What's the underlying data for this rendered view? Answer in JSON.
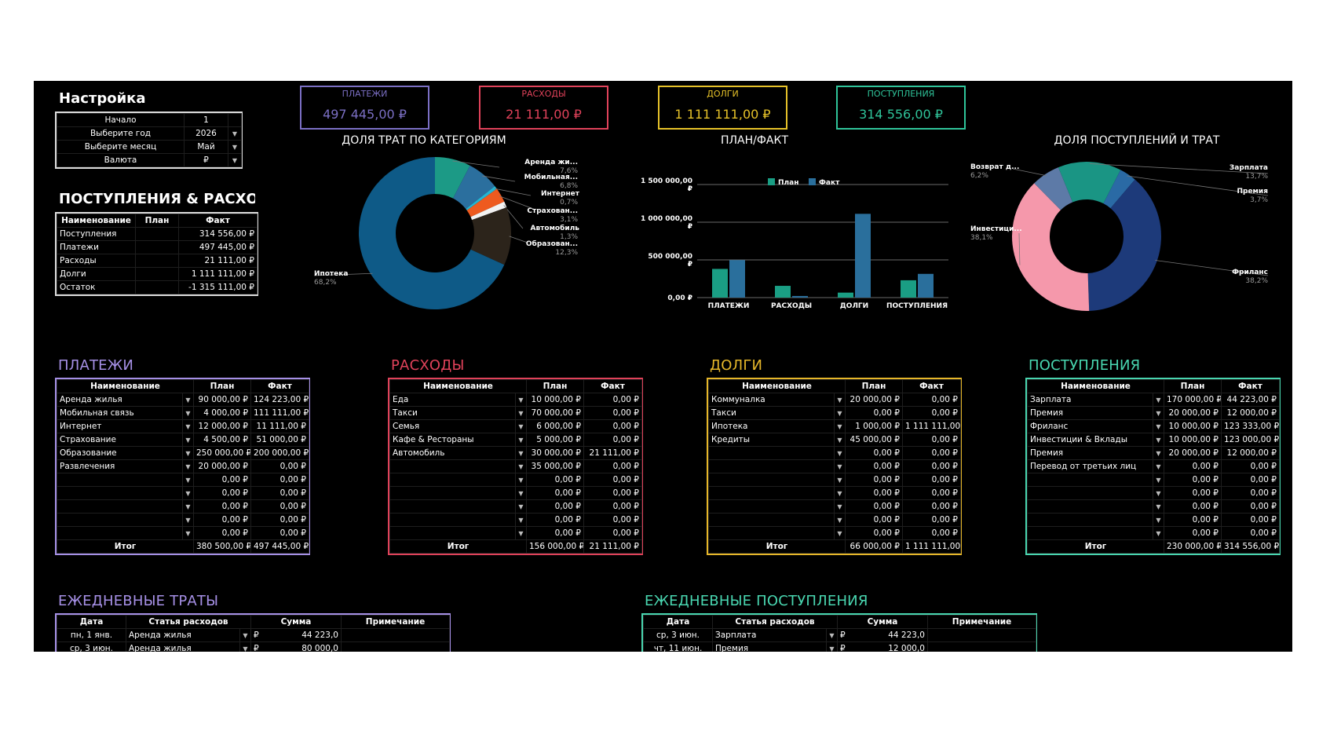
{
  "settings": {
    "title": "Настройка",
    "rows": [
      {
        "label": "Начало",
        "value": "1",
        "dropdown": false
      },
      {
        "label": "Выберите год",
        "value": "2026",
        "dropdown": true
      },
      {
        "label": "Выберите месяц",
        "value": "Май",
        "dropdown": true
      },
      {
        "label": "Валюта",
        "value": "₽",
        "dropdown": true
      }
    ]
  },
  "kpis": [
    {
      "label": "ПЛАТЕЖИ",
      "value": "497 445,00 ₽",
      "color": "#7b6fc4"
    },
    {
      "label": "РАСХОДЫ",
      "value": "21 111,00 ₽",
      "color": "#e0425a"
    },
    {
      "label": "ДОЛГИ",
      "value": "1 111 111,00 ₽",
      "color": "#e6c229"
    },
    {
      "label": "ПОСТУПЛЕНИЯ",
      "value": "314 556,00 ₽",
      "color": "#2fc49a"
    }
  ],
  "summary": {
    "title": "ПОСТУПЛЕНИЯ & РАСХОДЫ",
    "headers": [
      "Наименование",
      "План",
      "Факт"
    ],
    "rows": [
      [
        "Поступления",
        "",
        "314 556,00 ₽"
      ],
      [
        "Платежи",
        "",
        "497 445,00 ₽"
      ],
      [
        "Расходы",
        "",
        "21 111,00 ₽"
      ],
      [
        "Долги",
        "",
        "1 111 111,00 ₽"
      ],
      [
        "Остаток",
        "",
        "-1 315 111,00 ₽"
      ]
    ]
  },
  "charts": {
    "donut1_title": "ДОЛЯ ТРАТ ПО КАТЕГОРИЯМ",
    "bar_title": "ПЛАН/ФАКТ",
    "donut2_title": "ДОЛЯ ПОСТУПЛЕНИЙ И ТРАТ"
  },
  "chart_data": [
    {
      "type": "pie",
      "title": "ДОЛЯ ТРАТ ПО КАТЕГОРИЯМ",
      "labels": [
        "Аренда жи...",
        "Мобильная...",
        "Интернет",
        "Страхован...",
        "Автомобиль",
        "Образован...",
        "Ипотека"
      ],
      "values": [
        7.6,
        6.8,
        0.7,
        3.1,
        1.3,
        12.3,
        68.2
      ],
      "pct_labels": [
        "7,6%",
        "6,8%",
        "0,7%",
        "3,1%",
        "1,3%",
        "12,3%",
        "68,2%"
      ],
      "colors": [
        "#1c9a86",
        "#2b6f9e",
        "#23b5d3",
        "#ee5a1f",
        "#f2f2f2",
        "#2c241b",
        "#0e5a87"
      ]
    },
    {
      "type": "bar",
      "title": "ПЛАН/ФАКТ",
      "categories": [
        "ПЛАТЕЖИ",
        "РАСХОДЫ",
        "ДОЛГИ",
        "ПОСТУПЛЕНИЯ"
      ],
      "series": [
        {
          "name": "План",
          "values": [
            380500,
            156000,
            66000,
            230000
          ],
          "color": "#1a9e84"
        },
        {
          "name": "Факт",
          "values": [
            497445,
            21111,
            1111111,
            314556
          ],
          "color": "#2a6f9c"
        }
      ],
      "yticks": [
        "0,00 ₽",
        "500 000,00 ₽",
        "1 000 000,00 ₽",
        "1 500 000,00 ₽"
      ],
      "ylim": [
        0,
        1500000
      ],
      "legend": "top"
    },
    {
      "type": "pie",
      "title": "ДОЛЯ ПОСТУПЛЕНИЙ И ТРАТ",
      "labels": [
        "Зарплата",
        "Премия",
        "Фриланс",
        "Инвестици...",
        "Возврат д..."
      ],
      "values": [
        13.7,
        3.7,
        38.2,
        38.1,
        6.2
      ],
      "pct_labels": [
        "13,7%",
        "3,7%",
        "38,2%",
        "38,1%",
        "6,2%"
      ],
      "colors": [
        "#1a9584",
        "#2a6aa5",
        "#1d3a7a",
        "#f598ab",
        "#5d7aa7"
      ]
    }
  ],
  "tables": [
    {
      "title": "ПЛАТЕЖИ",
      "color": "#a690e6",
      "headers": [
        "Наименование",
        "План",
        "Факт"
      ],
      "rows": [
        [
          "Аренда жилья",
          "90 000,00 ₽",
          "124 223,00 ₽"
        ],
        [
          "Мобильная связь",
          "4 000,00 ₽",
          "111 111,00 ₽"
        ],
        [
          "Интернет",
          "12 000,00 ₽",
          "11 111,00 ₽"
        ],
        [
          "Страхование",
          "4 500,00 ₽",
          "51 000,00 ₽"
        ],
        [
          "Образование",
          "250 000,00 ₽",
          "200 000,00 ₽"
        ],
        [
          "Развлечения",
          "20 000,00 ₽",
          "0,00 ₽"
        ],
        [
          "",
          "0,00 ₽",
          "0,00 ₽"
        ],
        [
          "",
          "0,00 ₽",
          "0,00 ₽"
        ],
        [
          "",
          "0,00 ₽",
          "0,00 ₽"
        ],
        [
          "",
          "0,00 ₽",
          "0,00 ₽"
        ],
        [
          "",
          "0,00 ₽",
          "0,00 ₽"
        ]
      ],
      "total": [
        "Итог",
        "380 500,00 ₽",
        "497 445,00 ₽"
      ]
    },
    {
      "title": "РАСХОДЫ",
      "color": "#e0425a",
      "headers": [
        "Наименование",
        "План",
        "Факт"
      ],
      "rows": [
        [
          "Еда",
          "10 000,00 ₽",
          "0,00 ₽"
        ],
        [
          "Такси",
          "70 000,00 ₽",
          "0,00 ₽"
        ],
        [
          "Семья",
          "6 000,00 ₽",
          "0,00 ₽"
        ],
        [
          "Кафе & Рестораны",
          "5 000,00 ₽",
          "0,00 ₽"
        ],
        [
          "Автомобиль",
          "30 000,00 ₽",
          "21 111,00 ₽"
        ],
        [
          "",
          "35 000,00 ₽",
          "0,00 ₽"
        ],
        [
          "",
          "0,00 ₽",
          "0,00 ₽"
        ],
        [
          "",
          "0,00 ₽",
          "0,00 ₽"
        ],
        [
          "",
          "0,00 ₽",
          "0,00 ₽"
        ],
        [
          "",
          "0,00 ₽",
          "0,00 ₽"
        ],
        [
          "",
          "0,00 ₽",
          "0,00 ₽"
        ]
      ],
      "total": [
        "Итог",
        "156 000,00 ₽",
        "21 111,00 ₽"
      ]
    },
    {
      "title": "ДОЛГИ",
      "color": "#e6b72a",
      "headers": [
        "Наименование",
        "План",
        "Факт"
      ],
      "rows": [
        [
          "Коммуналка",
          "20 000,00 ₽",
          "0,00 ₽"
        ],
        [
          "Такси",
          "0,00 ₽",
          "0,00 ₽"
        ],
        [
          "Ипотека",
          "1 000,00 ₽",
          "1 111 111,00 ₽"
        ],
        [
          "Кредиты",
          "45 000,00 ₽",
          "0,00 ₽"
        ],
        [
          "",
          "0,00 ₽",
          "0,00 ₽"
        ],
        [
          "",
          "0,00 ₽",
          "0,00 ₽"
        ],
        [
          "",
          "0,00 ₽",
          "0,00 ₽"
        ],
        [
          "",
          "0,00 ₽",
          "0,00 ₽"
        ],
        [
          "",
          "0,00 ₽",
          "0,00 ₽"
        ],
        [
          "",
          "0,00 ₽",
          "0,00 ₽"
        ],
        [
          "",
          "0,00 ₽",
          "0,00 ₽"
        ]
      ],
      "total": [
        "Итог",
        "66 000,00 ₽",
        "1 111 111,00 ₽"
      ]
    },
    {
      "title": "ПОСТУПЛЕНИЯ",
      "color": "#49d6b0",
      "headers": [
        "Наименование",
        "План",
        "Факт"
      ],
      "rows": [
        [
          "Зарплата",
          "170 000,00 ₽",
          "44 223,00 ₽"
        ],
        [
          "Премия",
          "20 000,00 ₽",
          "12 000,00 ₽"
        ],
        [
          "Фриланс",
          "10 000,00 ₽",
          "123 333,00 ₽"
        ],
        [
          "Инвестиции & Вклады",
          "10 000,00 ₽",
          "123 000,00 ₽"
        ],
        [
          "Премия",
          "20 000,00 ₽",
          "12 000,00 ₽"
        ],
        [
          "Перевод от третьих лиц",
          "0,00 ₽",
          "0,00 ₽"
        ],
        [
          "",
          "0,00 ₽",
          "0,00 ₽"
        ],
        [
          "",
          "0,00 ₽",
          "0,00 ₽"
        ],
        [
          "",
          "0,00 ₽",
          "0,00 ₽"
        ],
        [
          "",
          "0,00 ₽",
          "0,00 ₽"
        ],
        [
          "",
          "0,00 ₽",
          "0,00 ₽"
        ]
      ],
      "total": [
        "Итог",
        "230 000,00 ₽",
        "314 556,00 ₽"
      ]
    }
  ],
  "daily": [
    {
      "title": "ЕЖЕДНЕВНЫЕ ТРАТЫ",
      "color": "#a690e6",
      "headers": [
        "Дата",
        "Статья расходов",
        "Сумма",
        "Примечание"
      ],
      "rows": [
        [
          "пн, 1 янв.",
          "Аренда жилья",
          "₽",
          "44 223,0"
        ],
        [
          "ср, 3 июн.",
          "Аренда жилья",
          "₽",
          "80 000,0"
        ]
      ]
    },
    {
      "title": "ЕЖЕДНЕВНЫЕ ПОСТУПЛЕНИЯ",
      "color": "#49d6b0",
      "headers": [
        "Дата",
        "Статья расходов",
        "Сумма",
        "Примечание"
      ],
      "rows": [
        [
          "ср, 3 июн.",
          "Зарплата",
          "₽",
          "44 223,0"
        ],
        [
          "чт, 11 июн.",
          "Премия",
          "₽",
          "12 000,0"
        ]
      ]
    }
  ]
}
